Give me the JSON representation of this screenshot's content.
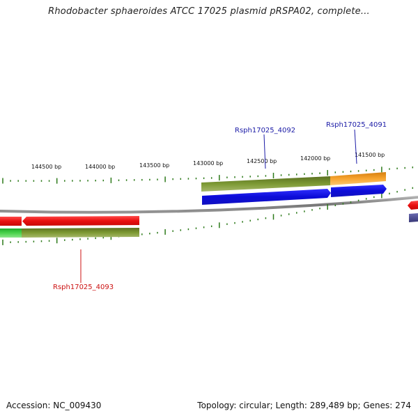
{
  "title": "Rhodobacter sphaeroides ATCC 17025 plasmid pRSPA02, complete...",
  "footer": {
    "accession": "Accession: NC_009430",
    "summary": "Topology: circular; Length: 289,489 bp; Genes: 274"
  },
  "ticks": [
    "144500 bp",
    "144000 bp",
    "143500 bp",
    "143000 bp",
    "142500 bp",
    "142000 bp",
    "141500 bp"
  ],
  "gene_labels": [
    {
      "text": "Rsph17025_4092",
      "color": "#1a1aa6"
    },
    {
      "text": "Rsph17025_4091",
      "color": "#1a1aa6"
    },
    {
      "text": "Rsph17025_4093",
      "color": "#cc1111"
    }
  ],
  "colors": {
    "tick_green": "#2d7a1a",
    "backbone": "#8a8a8a",
    "olive": "#6f8a2a",
    "orange": "#f39a1c",
    "blue": "#1414e0",
    "red": "#e81414",
    "light_green": "#44cc44",
    "purple": "#4a4a90"
  }
}
